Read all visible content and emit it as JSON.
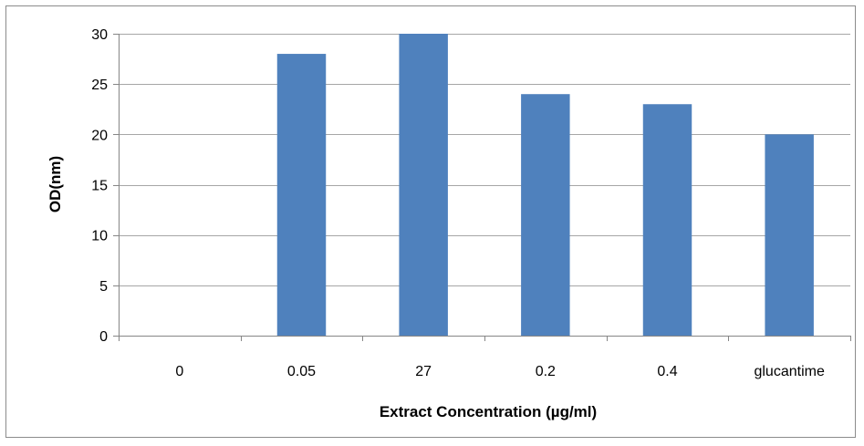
{
  "chart_data": {
    "type": "bar",
    "title": "",
    "xlabel": "Extract Concentration (µg/ml)",
    "ylabel": "OD(nm)",
    "categories": [
      "0",
      "0.05",
      "27",
      "0.2",
      "0.4",
      "glucantime"
    ],
    "series": [
      {
        "values": [
          0,
          28,
          30,
          24,
          23,
          20
        ],
        "color": "#4f81bd"
      }
    ],
    "ylim": [
      0,
      30
    ],
    "yticks": [
      0,
      5,
      10,
      15,
      20,
      25,
      30
    ],
    "grid": true,
    "legend": "none",
    "colors": {
      "bar": "#4f81bd",
      "grid": "#a6a6a6",
      "axis": "#868686",
      "border": "#8c8c8c"
    }
  }
}
